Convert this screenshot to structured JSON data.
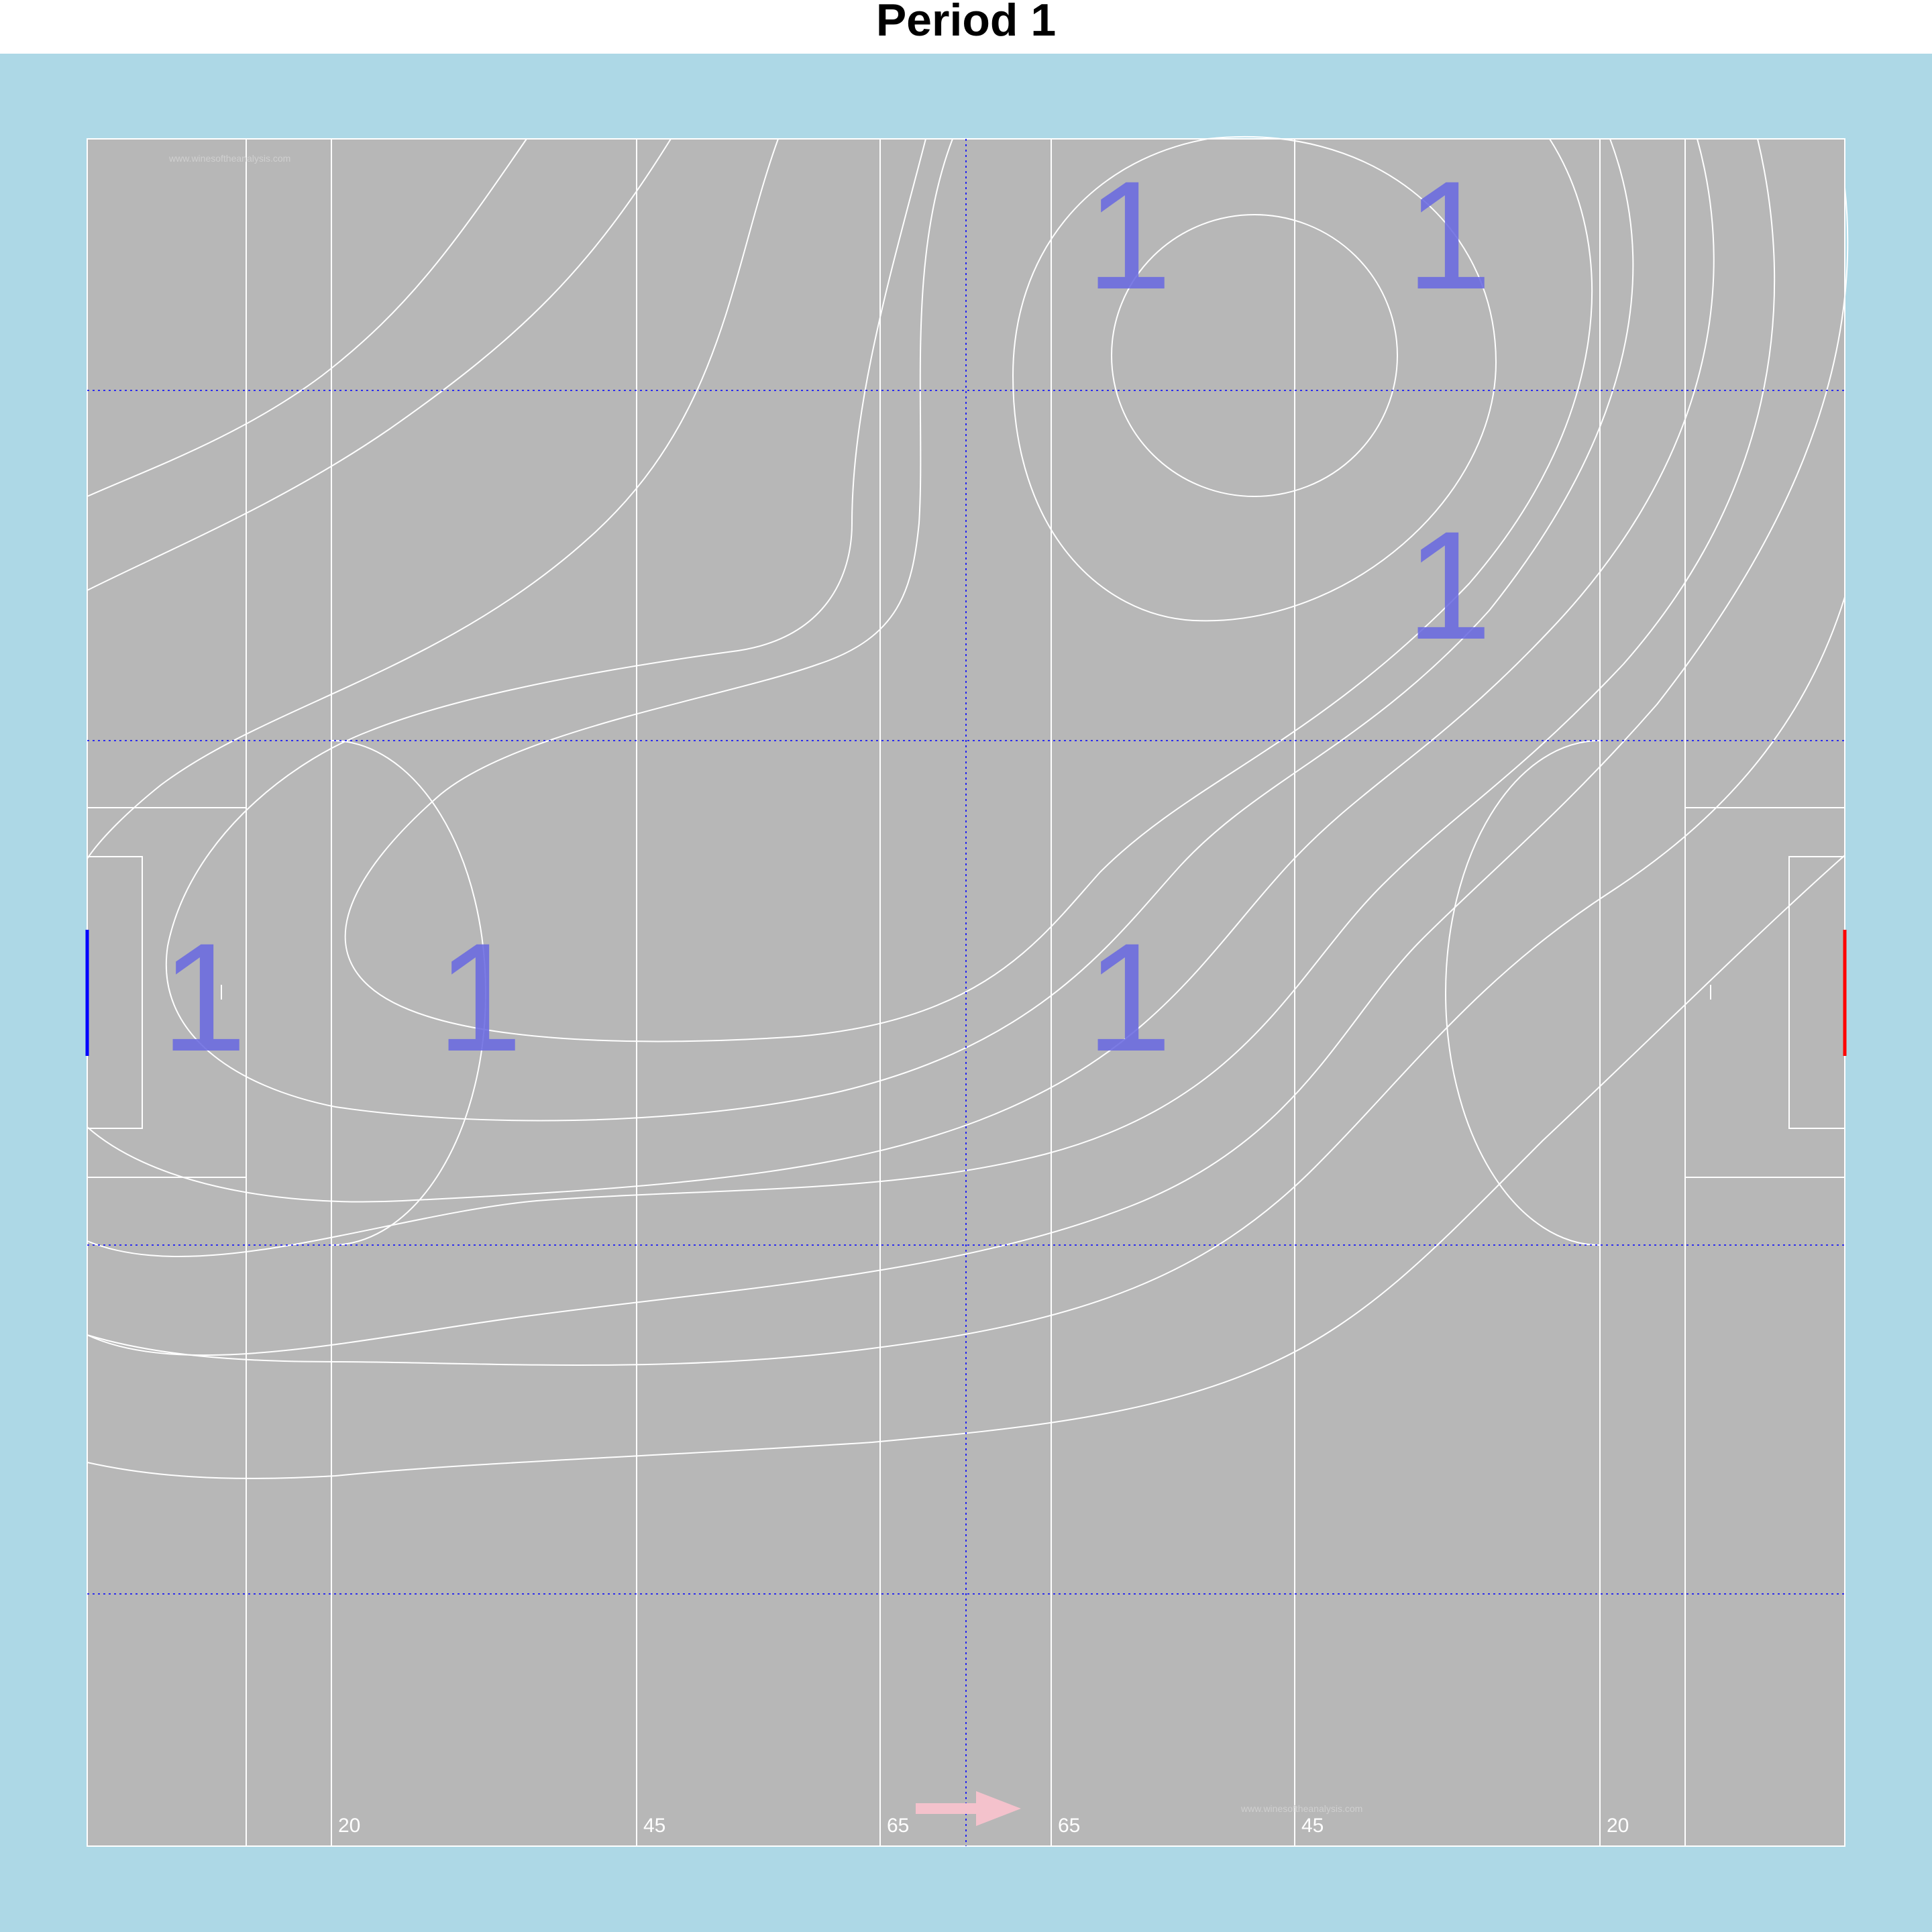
{
  "title": "Period 1",
  "colors": {
    "background": "#add8e6",
    "pitch": "#b7b7b7",
    "lines": "#ffffff",
    "grid": "#0000ff",
    "count_label": "#6a6ae0",
    "home_goal": "#0000ff",
    "away_goal": "#ff0000",
    "direction_arrow": "#f4c2cc"
  },
  "watermark": "www.winesoftheanalysis.com",
  "distance_labels": [
    "20",
    "45",
    "65",
    "65",
    "45",
    "20"
  ],
  "count_labels": [
    "1",
    "1",
    "1",
    "1",
    "1",
    "1",
    "1"
  ],
  "icons": {
    "direction": "right-arrow-icon"
  }
}
